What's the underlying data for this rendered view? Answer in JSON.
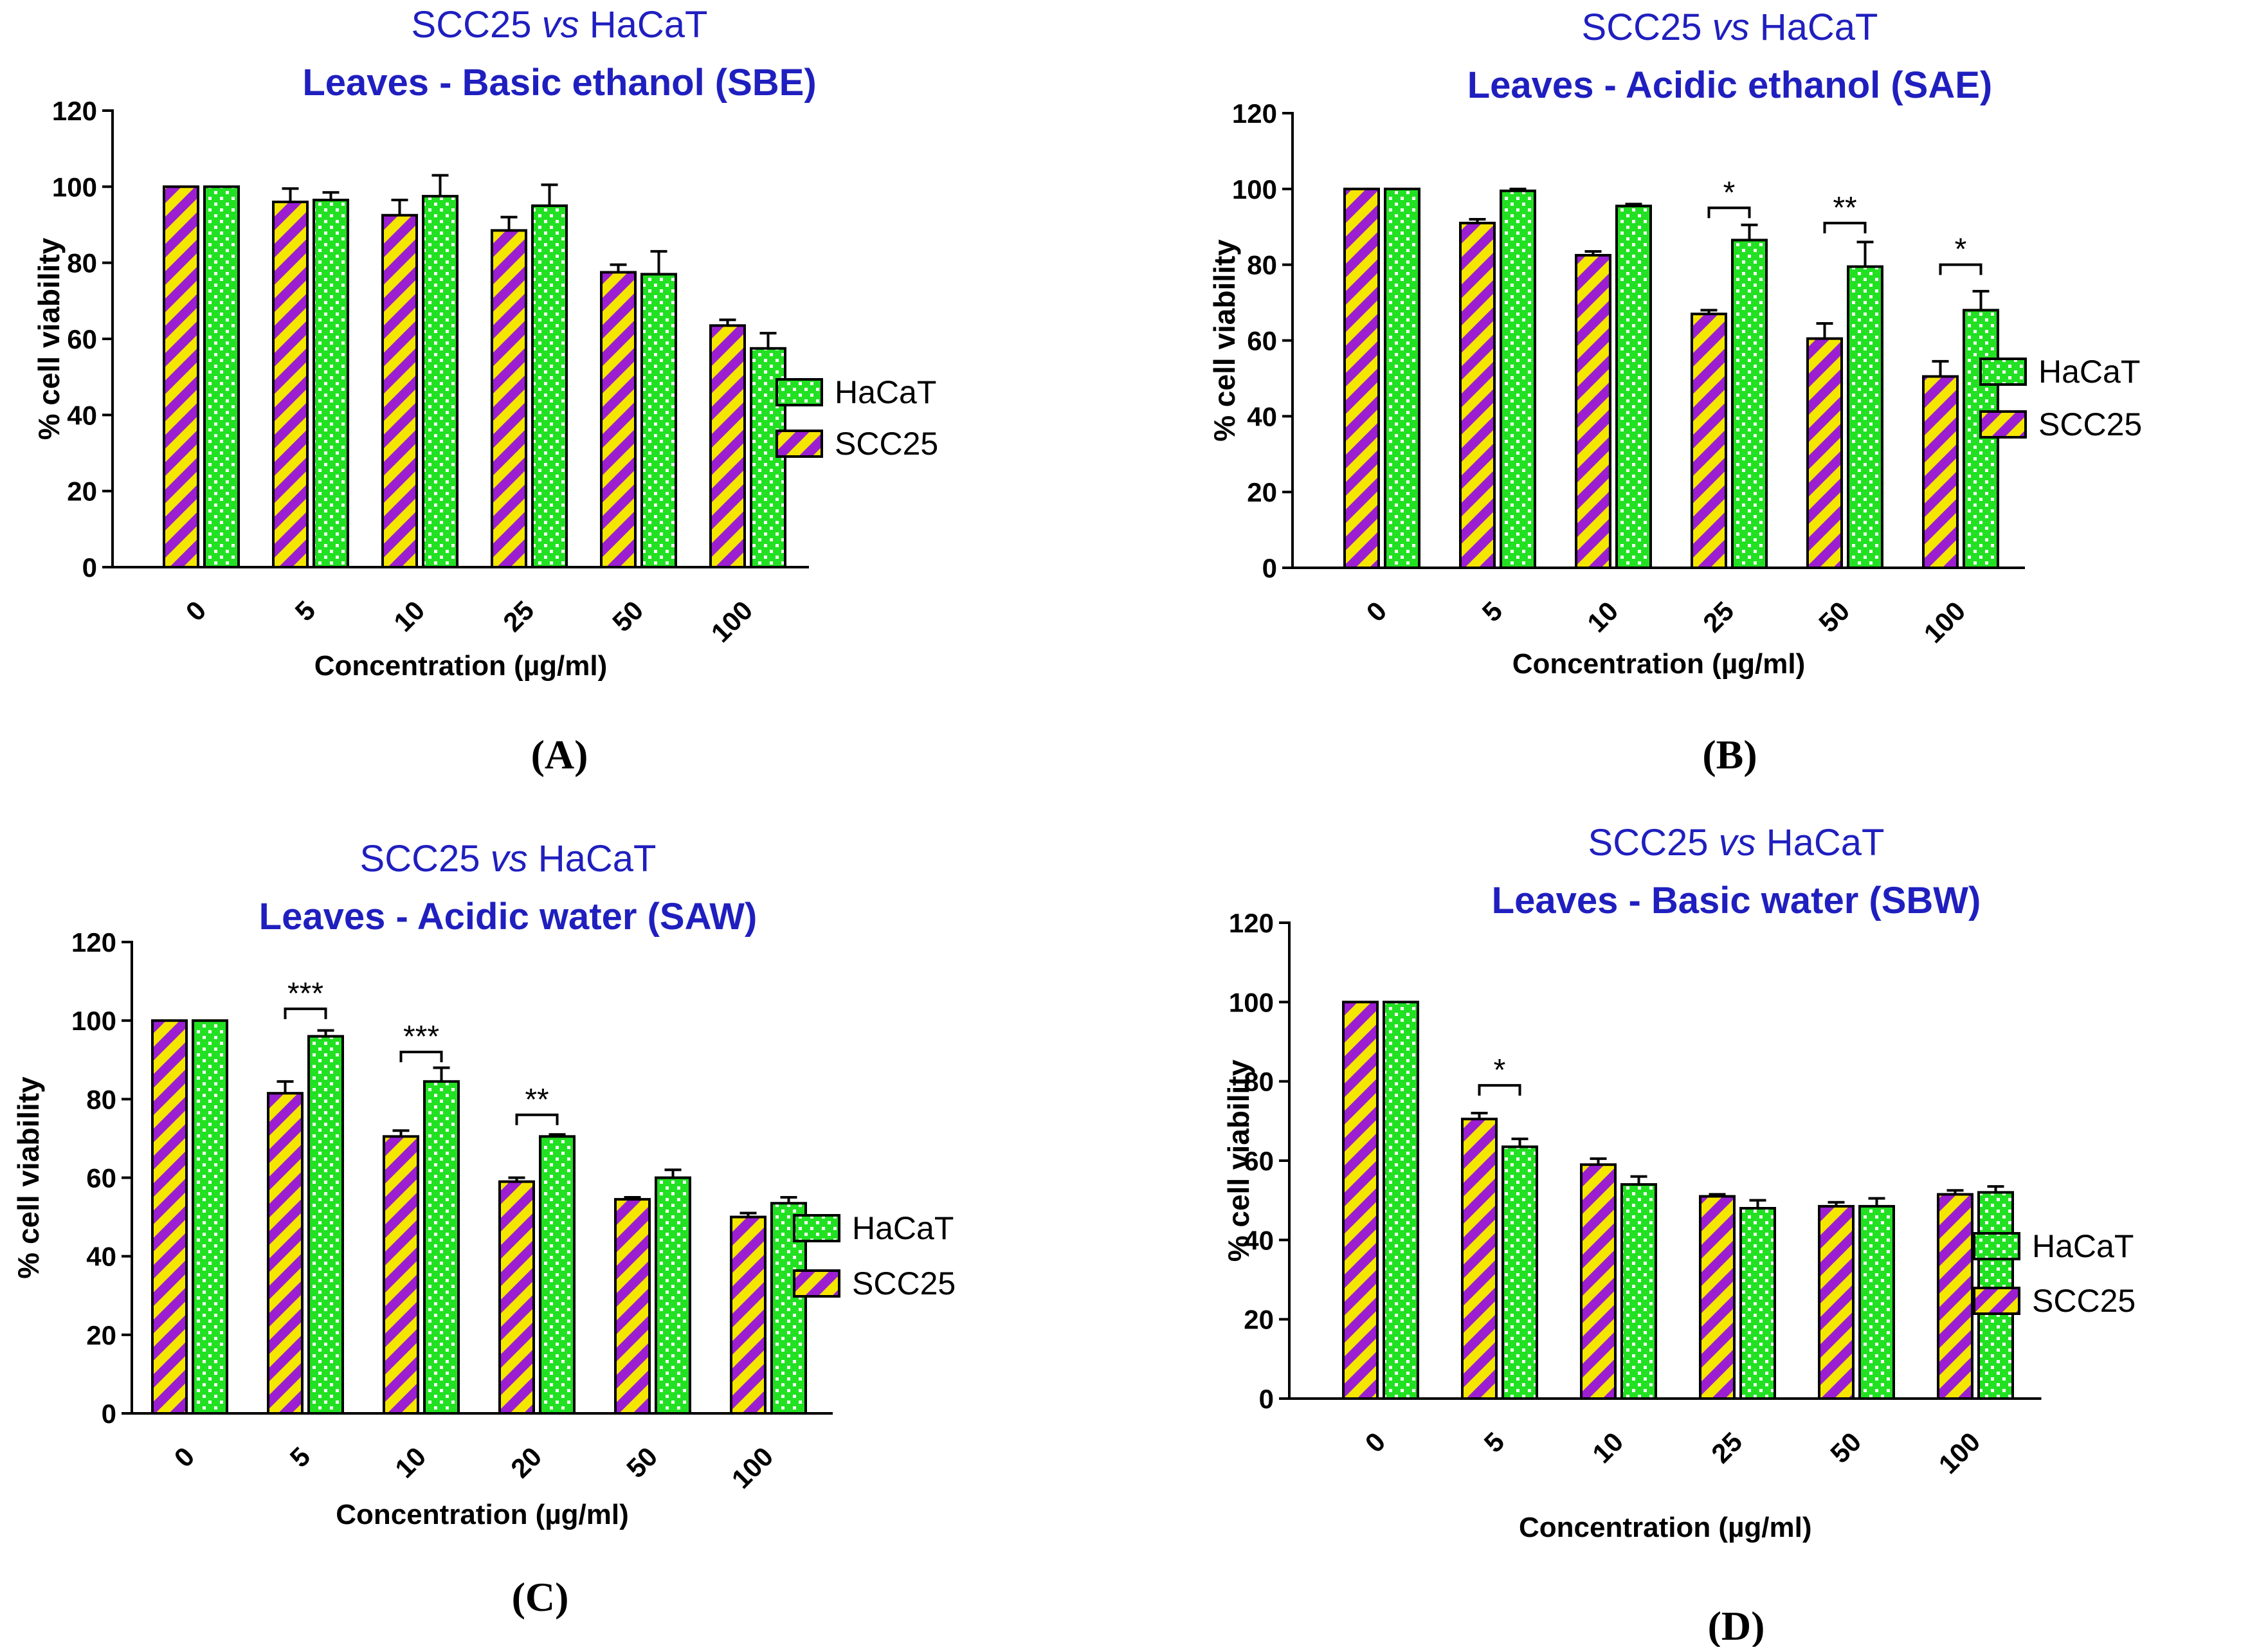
{
  "colors": {
    "title": "#1f1fbf",
    "scc_purple": "#9b1fd1",
    "scc_yellow": "#f5e600",
    "hacat_green": "#22e022",
    "hacat_white": "#ffffff",
    "axis": "#000000"
  },
  "chart_data": [
    {
      "type": "bar",
      "panel_label": "(A)",
      "title": "SCC25 vs HaCaT",
      "title_prefix": "SCC25 ",
      "title_italic": "vs",
      "title_suffix": " HaCaT",
      "subtitle": "Leaves -  Basic ethanol (SBE)",
      "xlabel": "Concentration (µg/ml)",
      "ylabel": "% cell viability",
      "ylim": [
        0,
        120
      ],
      "yticks": [
        "0",
        "20",
        "40",
        "60",
        "80",
        "100",
        "120"
      ],
      "categories": [
        "0",
        "5",
        "10",
        "25",
        "50",
        "100"
      ],
      "series": [
        {
          "name": "SCC25",
          "values": [
            100,
            96,
            92.5,
            88.5,
            77.5,
            63.5
          ],
          "errors": [
            0,
            3.5,
            4,
            3.5,
            2,
            1.5
          ]
        },
        {
          "name": "HaCaT",
          "values": [
            100,
            96.5,
            97.5,
            95,
            77,
            57.5
          ],
          "errors": [
            0,
            2,
            5.5,
            5.5,
            6,
            4
          ]
        }
      ],
      "legend": [
        "HaCaT",
        "SCC25"
      ],
      "significance": []
    },
    {
      "type": "bar",
      "panel_label": "(B)",
      "title": "SCC25 vs HaCaT",
      "title_prefix": "SCC25 ",
      "title_italic": "vs",
      "title_suffix": " HaCaT",
      "subtitle": "Leaves -  Acidic ethanol (SAE)",
      "xlabel": "Concentration (µg/ml)",
      "ylabel": "% cell viability",
      "ylim": [
        0,
        120
      ],
      "yticks": [
        "0",
        "20",
        "40",
        "60",
        "80",
        "100",
        "120"
      ],
      "categories": [
        "0",
        "5",
        "10",
        "25",
        "50",
        "100"
      ],
      "series": [
        {
          "name": "SCC25",
          "values": [
            100,
            91,
            82.5,
            67,
            60.5,
            50.5
          ],
          "errors": [
            0,
            1,
            1,
            1,
            4,
            4
          ]
        },
        {
          "name": "HaCaT",
          "values": [
            100,
            99.5,
            95.5,
            86.5,
            79.5,
            68
          ],
          "errors": [
            0,
            0.5,
            0.5,
            4,
            6.5,
            5
          ]
        }
      ],
      "legend": [
        "HaCaT",
        "SCC25"
      ],
      "significance": [
        {
          "category_index": 3,
          "label": "*",
          "level": 95
        },
        {
          "category_index": 4,
          "label": "**",
          "level": 91
        },
        {
          "category_index": 5,
          "label": "*",
          "level": 80
        }
      ]
    },
    {
      "type": "bar",
      "panel_label": "(C)",
      "title": "SCC25 vs HaCaT",
      "title_prefix": "SCC25 ",
      "title_italic": "vs",
      "title_suffix": " HaCaT",
      "subtitle": "Leaves -  Acidic water (SAW)",
      "xlabel": "Concentration (µg/ml)",
      "ylabel": "% cell viability",
      "ylim": [
        0,
        120
      ],
      "yticks": [
        "0",
        "20",
        "40",
        "60",
        "80",
        "100",
        "120"
      ],
      "categories": [
        "0",
        "5",
        "10",
        "20",
        "50",
        "100"
      ],
      "series": [
        {
          "name": "SCC25",
          "values": [
            100,
            81.5,
            70.5,
            59,
            54.5,
            50
          ],
          "errors": [
            0,
            3,
            1.5,
            1,
            0.5,
            1
          ]
        },
        {
          "name": "HaCaT",
          "values": [
            100,
            96,
            84.5,
            70.5,
            60,
            53.5
          ],
          "errors": [
            0,
            1.5,
            3.5,
            0.5,
            2,
            1.5
          ]
        }
      ],
      "legend": [
        "HaCaT",
        "SCC25"
      ],
      "significance": [
        {
          "category_index": 1,
          "label": "***",
          "level": 103
        },
        {
          "category_index": 2,
          "label": "***",
          "level": 92
        },
        {
          "category_index": 3,
          "label": "**",
          "level": 76
        }
      ]
    },
    {
      "type": "bar",
      "panel_label": "(D)",
      "title": "SCC25 vs HaCaT",
      "title_prefix": "SCC25 ",
      "title_italic": "vs",
      "title_suffix": " HaCaT",
      "subtitle": "Leaves -  Basic water (SBW)",
      "xlabel": "Concentration (µg/ml)",
      "ylabel": "% cell viability",
      "ylim": [
        0,
        120
      ],
      "yticks": [
        "0",
        "20",
        "40",
        "60",
        "80",
        "100",
        "120"
      ],
      "categories": [
        "0",
        "5",
        "10",
        "25",
        "50",
        "100"
      ],
      "series": [
        {
          "name": "SCC25",
          "values": [
            100,
            70.5,
            59,
            51,
            48.5,
            51.5
          ],
          "errors": [
            0,
            1.5,
            1.5,
            0.5,
            1,
            1
          ]
        },
        {
          "name": "HaCaT",
          "values": [
            100,
            63.5,
            54,
            48,
            48.5,
            52
          ],
          "errors": [
            0,
            2,
            2,
            2,
            2,
            1.5
          ]
        }
      ],
      "legend": [
        "HaCaT",
        "SCC25"
      ],
      "significance": [
        {
          "category_index": 1,
          "label": "*",
          "level": 79
        }
      ]
    }
  ]
}
